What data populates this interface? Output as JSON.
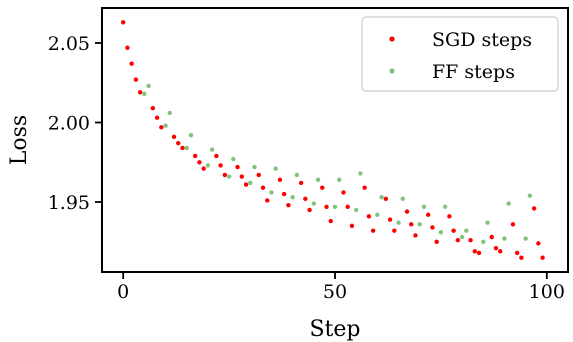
{
  "chart_data": {
    "type": "scatter",
    "xlabel": "Step",
    "ylabel": "Loss",
    "xlim": [
      -5,
      105
    ],
    "ylim": [
      1.906,
      2.072
    ],
    "xticks": [
      0,
      50,
      100
    ],
    "xtick_labels": [
      "0",
      "50",
      "100"
    ],
    "yticks": [
      1.95,
      2.0,
      2.05
    ],
    "ytick_labels": [
      "1.95",
      "2.00",
      "2.05"
    ],
    "grid": false,
    "legend_position": "top-right",
    "series": [
      {
        "name": "SGD steps",
        "color": "#ff0000",
        "points": [
          [
            0,
            2.063
          ],
          [
            1,
            2.047
          ],
          [
            2,
            2.037
          ],
          [
            3,
            2.027
          ],
          [
            4,
            2.019
          ],
          [
            7,
            2.009
          ],
          [
            8,
            2.003
          ],
          [
            9,
            1.997
          ],
          [
            12,
            1.991
          ],
          [
            13,
            1.987
          ],
          [
            14,
            1.984
          ],
          [
            17,
            1.979
          ],
          [
            18,
            1.975
          ],
          [
            19,
            1.971
          ],
          [
            22,
            1.979
          ],
          [
            23,
            1.973
          ],
          [
            24,
            1.967
          ],
          [
            27,
            1.972
          ],
          [
            28,
            1.966
          ],
          [
            29,
            1.961
          ],
          [
            32,
            1.967
          ],
          [
            33,
            1.959
          ],
          [
            34,
            1.951
          ],
          [
            37,
            1.964
          ],
          [
            38,
            1.955
          ],
          [
            39,
            1.948
          ],
          [
            42,
            1.962
          ],
          [
            43,
            1.952
          ],
          [
            44,
            1.945
          ],
          [
            47,
            1.959
          ],
          [
            48,
            1.947
          ],
          [
            49,
            1.938
          ],
          [
            52,
            1.956
          ],
          [
            53,
            1.947
          ],
          [
            54,
            1.935
          ],
          [
            57,
            1.959
          ],
          [
            58,
            1.941
          ],
          [
            59,
            1.932
          ],
          [
            62,
            1.952
          ],
          [
            63,
            1.939
          ],
          [
            64,
            1.932
          ],
          [
            67,
            1.944
          ],
          [
            68,
            1.936
          ],
          [
            69,
            1.929
          ],
          [
            72,
            1.942
          ],
          [
            73,
            1.934
          ],
          [
            74,
            1.925
          ],
          [
            77,
            1.941
          ],
          [
            78,
            1.932
          ],
          [
            79,
            1.926
          ],
          [
            82,
            1.926
          ],
          [
            83,
            1.919
          ],
          [
            84,
            1.918
          ],
          [
            87,
            1.928
          ],
          [
            88,
            1.921
          ],
          [
            89,
            1.919
          ],
          [
            92,
            1.936
          ],
          [
            93,
            1.918
          ],
          [
            94,
            1.915
          ],
          [
            97,
            1.946
          ],
          [
            98,
            1.924
          ],
          [
            99,
            1.915
          ]
        ]
      },
      {
        "name": "FF steps",
        "color": "#7ec47e",
        "points": [
          [
            5,
            2.018
          ],
          [
            6,
            2.023
          ],
          [
            10,
            1.998
          ],
          [
            11,
            2.006
          ],
          [
            15,
            1.984
          ],
          [
            16,
            1.992
          ],
          [
            20,
            1.973
          ],
          [
            21,
            1.983
          ],
          [
            25,
            1.966
          ],
          [
            26,
            1.977
          ],
          [
            30,
            1.962
          ],
          [
            31,
            1.972
          ],
          [
            35,
            1.956
          ],
          [
            36,
            1.971
          ],
          [
            40,
            1.953
          ],
          [
            41,
            1.967
          ],
          [
            45,
            1.949
          ],
          [
            46,
            1.964
          ],
          [
            50,
            1.947
          ],
          [
            51,
            1.964
          ],
          [
            55,
            1.945
          ],
          [
            56,
            1.968
          ],
          [
            60,
            1.942
          ],
          [
            61,
            1.953
          ],
          [
            65,
            1.937
          ],
          [
            66,
            1.952
          ],
          [
            70,
            1.936
          ],
          [
            71,
            1.947
          ],
          [
            75,
            1.931
          ],
          [
            76,
            1.947
          ],
          [
            80,
            1.928
          ],
          [
            81,
            1.932
          ],
          [
            85,
            1.925
          ],
          [
            86,
            1.937
          ],
          [
            90,
            1.927
          ],
          [
            91,
            1.949
          ],
          [
            95,
            1.927
          ],
          [
            96,
            1.954
          ]
        ]
      }
    ]
  }
}
